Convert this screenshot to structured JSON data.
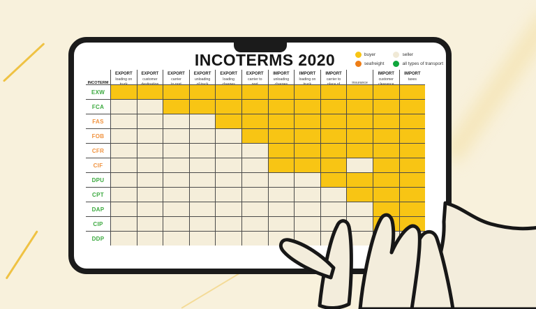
{
  "tablet": {
    "title": "INCOTERMS 2020",
    "legend": [
      {
        "label": "buyer",
        "color": "#F8C514"
      },
      {
        "label": "seller",
        "color": "#F0E9D6"
      },
      {
        "label": "seafreight",
        "color": "#EE7D16"
      },
      {
        "label": "all types of transport",
        "color": "#0FA63C"
      }
    ],
    "table": {
      "corner_header": "INCOTERM",
      "columns": [
        {
          "prefix": "EXPORT",
          "desc": "loading on\ntruck\n(carrier)"
        },
        {
          "prefix": "EXPORT",
          "desc": "customer\ndestination"
        },
        {
          "prefix": "EXPORT",
          "desc": "carrier\nto port"
        },
        {
          "prefix": "EXPORT",
          "desc": "unloading\nof truck\nin port"
        },
        {
          "prefix": "EXPORT",
          "desc": "loading\ncharges\nin port"
        },
        {
          "prefix": "EXPORT",
          "desc": "carrier to\nport"
        },
        {
          "prefix": "IMPORT",
          "desc": "unloading\ncharges\nin port"
        },
        {
          "prefix": "IMPORT",
          "desc": "loading on\ntruck\nin port"
        },
        {
          "prefix": "IMPORT",
          "desc": "carrier to\nplace of\ndestination"
        },
        {
          "prefix": "",
          "desc": "insurance"
        },
        {
          "prefix": "IMPORT",
          "desc": "customer\nclearance"
        },
        {
          "prefix": "IMPORT",
          "desc": "taxes"
        }
      ],
      "rows": [
        {
          "code": "EXW",
          "transport": "all types of transport",
          "cells": [
            "buyer",
            "buyer",
            "buyer",
            "buyer",
            "buyer",
            "buyer",
            "buyer",
            "buyer",
            "buyer",
            "buyer",
            "buyer",
            "buyer"
          ]
        },
        {
          "code": "FCA",
          "transport": "all types of transport",
          "cells": [
            "seller",
            "seller",
            "buyer",
            "buyer",
            "buyer",
            "buyer",
            "buyer",
            "buyer",
            "buyer",
            "buyer",
            "buyer",
            "buyer"
          ]
        },
        {
          "code": "FAS",
          "transport": "seafreight",
          "cells": [
            "seller",
            "seller",
            "seller",
            "seller",
            "buyer",
            "buyer",
            "buyer",
            "buyer",
            "buyer",
            "buyer",
            "buyer",
            "buyer"
          ]
        },
        {
          "code": "FOB",
          "transport": "seafreight",
          "cells": [
            "seller",
            "seller",
            "seller",
            "seller",
            "seller",
            "buyer",
            "buyer",
            "buyer",
            "buyer",
            "buyer",
            "buyer",
            "buyer"
          ]
        },
        {
          "code": "CFR",
          "transport": "seafreight",
          "cells": [
            "seller",
            "seller",
            "seller",
            "seller",
            "seller",
            "seller",
            "buyer",
            "buyer",
            "buyer",
            "buyer",
            "buyer",
            "buyer"
          ]
        },
        {
          "code": "CIF",
          "transport": "seafreight",
          "cells": [
            "seller",
            "seller",
            "seller",
            "seller",
            "seller",
            "seller",
            "buyer",
            "buyer",
            "buyer",
            "seller",
            "buyer",
            "buyer"
          ]
        },
        {
          "code": "DPU",
          "transport": "all types of transport",
          "cells": [
            "seller",
            "seller",
            "seller",
            "seller",
            "seller",
            "seller",
            "seller",
            "seller",
            "buyer",
            "buyer",
            "buyer",
            "buyer"
          ]
        },
        {
          "code": "CPT",
          "transport": "all types of transport",
          "cells": [
            "seller",
            "seller",
            "seller",
            "seller",
            "seller",
            "seller",
            "seller",
            "seller",
            "seller",
            "buyer",
            "buyer",
            "buyer"
          ]
        },
        {
          "code": "DAP",
          "transport": "all types of transport",
          "cells": [
            "seller",
            "seller",
            "seller",
            "seller",
            "seller",
            "seller",
            "seller",
            "seller",
            "seller",
            "seller",
            "buyer",
            "buyer"
          ]
        },
        {
          "code": "CIP",
          "transport": "all types of transport",
          "cells": [
            "seller",
            "seller",
            "seller",
            "seller",
            "seller",
            "seller",
            "seller",
            "seller",
            "seller",
            "seller",
            "buyer",
            "buyer"
          ]
        },
        {
          "code": "DDP",
          "transport": "all types of transport",
          "cells": [
            "seller",
            "seller",
            "seller",
            "seller",
            "seller",
            "seller",
            "seller",
            "seller",
            "seller",
            "seller",
            "seller",
            "seller"
          ]
        }
      ]
    },
    "colors": {
      "buyer_cell": "#F8C514",
      "seller_cell": "#F5EEDA",
      "transport_label_green": "#3BA93F",
      "seafreight_label_orange": "#F0923E"
    }
  }
}
